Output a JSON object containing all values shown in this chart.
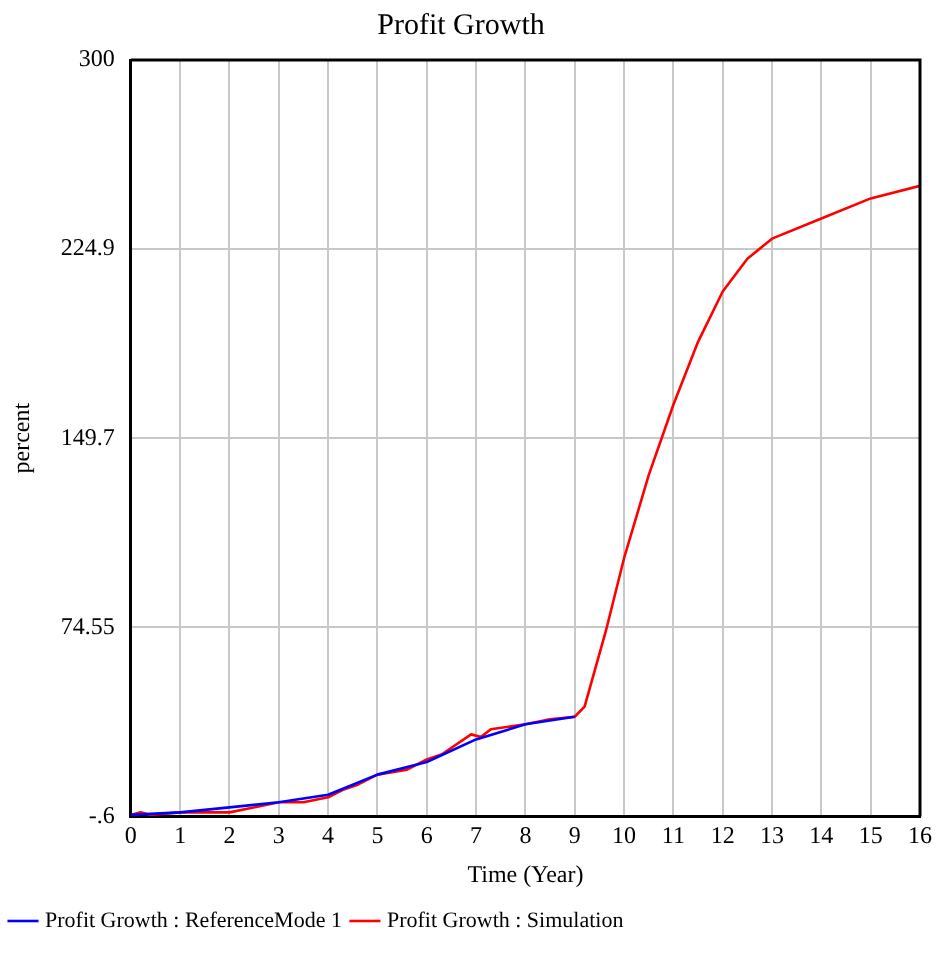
{
  "chart_data": {
    "type": "line",
    "title": "Profit Growth",
    "xlabel": "Time (Year)",
    "ylabel": "percent",
    "xlim": [
      0,
      16
    ],
    "xticks": [
      0,
      1,
      2,
      3,
      4,
      5,
      6,
      7,
      8,
      9,
      10,
      11,
      12,
      13,
      14,
      15,
      16
    ],
    "ylim": [
      -0.6,
      300
    ],
    "yticks": [
      {
        "value": -0.6,
        "label": "-.6"
      },
      74.55,
      149.7,
      224.9,
      300
    ],
    "grid": true,
    "legend": "bottom",
    "marker": "none",
    "line_style": "solid",
    "series": [
      {
        "name": "Profit Growth : ReferenceMode 1",
        "color": "#0000ff",
        "x": [
          0,
          1,
          2,
          3,
          4,
          4.5,
          5,
          6,
          7,
          8,
          9
        ],
        "values": [
          0,
          1,
          3,
          5,
          8,
          12,
          16,
          21,
          30,
          36,
          39
        ]
      },
      {
        "name": "Profit Growth : Simulation",
        "color": "#ff0000",
        "x": [
          0,
          0.2,
          0.4,
          1,
          2,
          3,
          3.5,
          4,
          4.3,
          4.6,
          5,
          5.6,
          6,
          6.3,
          6.9,
          7.1,
          7.3,
          8,
          8.5,
          9,
          9.2,
          9.63,
          10,
          10.5,
          11,
          11.5,
          12,
          12.5,
          13,
          14,
          15,
          16
        ],
        "values": [
          0,
          1,
          0,
          1,
          1,
          5,
          5,
          7,
          10,
          12,
          16,
          18,
          22,
          24,
          32,
          31,
          34,
          36,
          38,
          39,
          43,
          73,
          102,
          135,
          163,
          188,
          208,
          221,
          229,
          237,
          245,
          250
        ]
      }
    ]
  }
}
